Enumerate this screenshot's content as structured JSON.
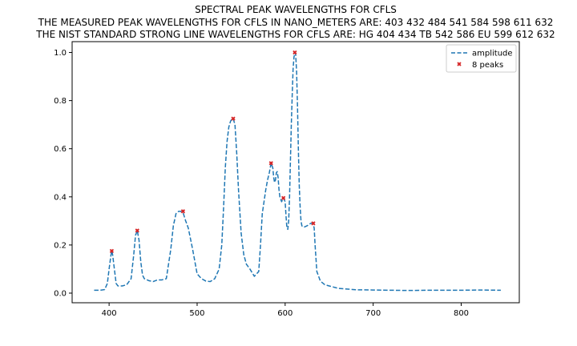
{
  "chart_data": {
    "type": "line",
    "title_lines": [
      "SPECTRAL PEAK WAVELENGTHS FOR CFLS",
      "THE MEASURED PEAK WAVELENGTHS FOR CFLS IN NANO_METERS ARE: 403 432 484 541 584 598 611 632",
      "THE NIST STANDARD STRONG LINE WAVELENGTHS FOR CFLS ARE: HG 404 434 TB 542 586 EU 599 612 632"
    ],
    "xlabel": "",
    "ylabel": "",
    "xlim": [
      358,
      866
    ],
    "ylim": [
      -0.04,
      1.045
    ],
    "x_ticks": [
      400,
      500,
      600,
      700,
      800
    ],
    "y_ticks": [
      0.0,
      0.2,
      0.4,
      0.6,
      0.8,
      1.0
    ],
    "x_tick_labels": [
      "400",
      "500",
      "600",
      "700",
      "800"
    ],
    "y_tick_labels": [
      "0.0",
      "0.2",
      "0.4",
      "0.6",
      "0.8",
      "1.0"
    ],
    "grid": false,
    "legend_position": "top-right",
    "series": [
      {
        "name": "amplitude",
        "style": "dashed",
        "color": "#1f77b4",
        "x": [
          383,
          390,
          395,
          398,
          400,
          402,
          403,
          404,
          406,
          408,
          410,
          415,
          420,
          425,
          428,
          430,
          432,
          434,
          436,
          438,
          440,
          445,
          450,
          455,
          460,
          465,
          470,
          473,
          476,
          479,
          481,
          484,
          487,
          490,
          495,
          500,
          505,
          510,
          515,
          520,
          525,
          528,
          530,
          532,
          534,
          536,
          538,
          540,
          541,
          543,
          545,
          547,
          550,
          553,
          556,
          560,
          565,
          570,
          572,
          574,
          576,
          578,
          580,
          582,
          584,
          586,
          587,
          588,
          589,
          590,
          591,
          592,
          593,
          594,
          596,
          598,
          600,
          601,
          602,
          603,
          604,
          605,
          606,
          607,
          608,
          609,
          610,
          611,
          612,
          613,
          614,
          615,
          616,
          617,
          618,
          619,
          620,
          622,
          625,
          627,
          629,
          630,
          631,
          632,
          633,
          634,
          636,
          638,
          640,
          645,
          650,
          660,
          680,
          700,
          720,
          740,
          760,
          780,
          800,
          820,
          845
        ],
        "values": [
          0.012,
          0.012,
          0.015,
          0.04,
          0.1,
          0.155,
          0.175,
          0.16,
          0.1,
          0.04,
          0.03,
          0.03,
          0.035,
          0.06,
          0.16,
          0.24,
          0.26,
          0.22,
          0.13,
          0.075,
          0.06,
          0.052,
          0.048,
          0.055,
          0.055,
          0.06,
          0.18,
          0.28,
          0.33,
          0.34,
          0.34,
          0.335,
          0.3,
          0.27,
          0.18,
          0.08,
          0.06,
          0.05,
          0.048,
          0.06,
          0.1,
          0.2,
          0.35,
          0.52,
          0.63,
          0.69,
          0.715,
          0.725,
          0.725,
          0.7,
          0.58,
          0.43,
          0.25,
          0.16,
          0.12,
          0.1,
          0.07,
          0.09,
          0.2,
          0.33,
          0.38,
          0.43,
          0.47,
          0.5,
          0.54,
          0.52,
          0.48,
          0.46,
          0.47,
          0.5,
          0.505,
          0.48,
          0.43,
          0.4,
          0.38,
          0.395,
          0.38,
          0.32,
          0.27,
          0.265,
          0.3,
          0.4,
          0.55,
          0.7,
          0.82,
          0.93,
          0.98,
          1.0,
          0.99,
          0.92,
          0.78,
          0.6,
          0.45,
          0.36,
          0.3,
          0.28,
          0.275,
          0.275,
          0.28,
          0.285,
          0.29,
          0.29,
          0.29,
          0.285,
          0.27,
          0.2,
          0.09,
          0.07,
          0.05,
          0.035,
          0.03,
          0.02,
          0.014,
          0.013,
          0.012,
          0.011,
          0.012,
          0.012,
          0.012,
          0.013,
          0.012
        ]
      },
      {
        "name": "8 peaks",
        "style": "markers",
        "color": "#d62728",
        "x": [
          403,
          432,
          484,
          541,
          584,
          598,
          611,
          632
        ],
        "values": [
          0.175,
          0.26,
          0.34,
          0.725,
          0.54,
          0.395,
          1.0,
          0.29
        ]
      }
    ]
  }
}
